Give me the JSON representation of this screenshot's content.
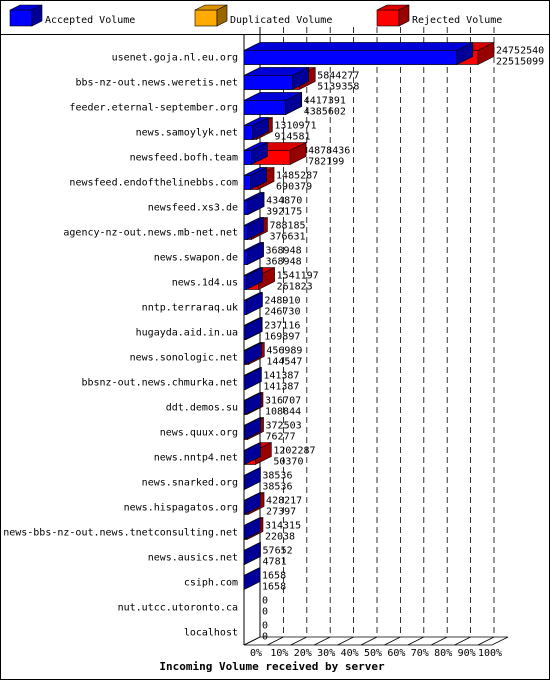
{
  "chart_data": {
    "type": "bar3d",
    "xlabel": "Incoming Volume received by server",
    "legend": [
      {
        "name": "Accepted Volume",
        "color": "#0000ff"
      },
      {
        "name": "Duplicated Volume",
        "color": "#ffaa00"
      },
      {
        "name": "Rejected Volume",
        "color": "#ff0000"
      }
    ],
    "categories": [
      "usenet.goja.nl.eu.org",
      "bbs-nz-out.news.weretis.net",
      "feeder.eternal-september.org",
      "news.samoylyk.net",
      "newsfeed.bofh.team",
      "newsfeed.endofthelinebbs.com",
      "newsfeed.xs3.de",
      "agency-nz-out.news.mb-net.net",
      "news.swapon.de",
      "news.1d4.us",
      "nntp.terraraq.uk",
      "hugayda.aid.in.ua",
      "news.sonologic.net",
      "bbsnz-out.news.chmurka.net",
      "ddt.demos.su",
      "news.quux.org",
      "news.nntp4.net",
      "news.snarked.org",
      "news.hispagatos.org",
      "news-bbs-nz-out.news.tnetconsulting.net",
      "news.ausics.net",
      "csiph.com",
      "nut.utcc.utoronto.ca",
      "localhost"
    ],
    "totals": [
      24752540,
      5844277,
      4417391,
      1310971,
      4878436,
      1485287,
      434870,
      788185,
      368948,
      1541197,
      248910,
      237116,
      456989,
      141387,
      316707,
      372503,
      1202287,
      38536,
      428217,
      314315,
      57652,
      1658,
      0,
      0
    ],
    "accepted": [
      22515099,
      5139358,
      4385602,
      914581,
      782199,
      690379,
      392175,
      376631,
      368948,
      261823,
      246730,
      169897,
      144547,
      141387,
      108844,
      76277,
      50370,
      38536,
      27397,
      22038,
      4781,
      1658,
      0,
      0
    ],
    "xlim": [
      0,
      100
    ],
    "xticks": [
      {
        "value": 0,
        "label": "0%"
      },
      {
        "value": 10,
        "label": "10%"
      },
      {
        "value": 20,
        "label": "20%"
      },
      {
        "value": 30,
        "label": "30%"
      },
      {
        "value": 40,
        "label": "40%"
      },
      {
        "value": 50,
        "label": "50%"
      },
      {
        "value": 60,
        "label": "60%"
      },
      {
        "value": 70,
        "label": "70%"
      },
      {
        "value": 80,
        "label": "80%"
      },
      {
        "value": 90,
        "label": "90%"
      },
      {
        "value": 100,
        "label": "100%"
      }
    ],
    "grid": true
  }
}
